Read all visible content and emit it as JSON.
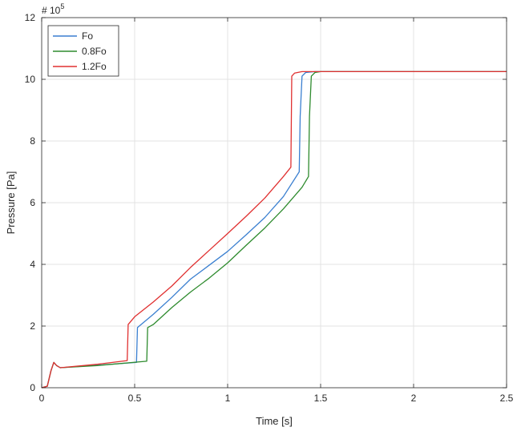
{
  "chart_data": {
    "type": "line",
    "xlabel": "Time [s]",
    "ylabel": "Pressure [Pa]",
    "exponent_label": "# 10",
    "exponent_power": "5",
    "xlim": [
      0,
      2.5
    ],
    "ylim": [
      0,
      12
    ],
    "xticks": [
      "0",
      "0.5",
      "1",
      "1.5",
      "2",
      "2.5"
    ],
    "yticks": [
      "0",
      "2",
      "4",
      "6",
      "8",
      "10",
      "12"
    ],
    "grid": true,
    "legend_position": "top-left",
    "series": [
      {
        "name": "Fo",
        "color": "#3a7fd0",
        "x": [
          0,
          0.03,
          0.05,
          0.065,
          0.08,
          0.1,
          0.3,
          0.51,
          0.515,
          0.6,
          0.7,
          0.8,
          0.9,
          1.0,
          1.1,
          1.2,
          1.3,
          1.385,
          1.39,
          1.4,
          1.42,
          1.47,
          2.5
        ],
        "y": [
          0,
          0.05,
          0.55,
          0.82,
          0.72,
          0.65,
          0.73,
          0.82,
          1.95,
          2.38,
          2.93,
          3.52,
          3.97,
          4.42,
          4.96,
          5.52,
          6.2,
          7.0,
          8.8,
          10.1,
          10.22,
          10.25,
          10.25
        ]
      },
      {
        "name": "0.8Fo",
        "color": "#2e8b2e",
        "x": [
          0,
          0.03,
          0.05,
          0.065,
          0.08,
          0.1,
          0.3,
          0.565,
          0.57,
          0.6,
          0.7,
          0.8,
          0.9,
          1.0,
          1.1,
          1.2,
          1.3,
          1.4,
          1.435,
          1.44,
          1.45,
          1.47,
          1.5,
          2.5
        ],
        "y": [
          0,
          0.05,
          0.55,
          0.82,
          0.72,
          0.65,
          0.72,
          0.86,
          1.95,
          2.05,
          2.6,
          3.1,
          3.55,
          4.05,
          4.62,
          5.18,
          5.8,
          6.5,
          6.85,
          8.8,
          10.1,
          10.22,
          10.25,
          10.25
        ]
      },
      {
        "name": "1.2Fo",
        "color": "#e03030",
        "x": [
          0,
          0.03,
          0.05,
          0.065,
          0.08,
          0.1,
          0.3,
          0.46,
          0.465,
          0.5,
          0.6,
          0.7,
          0.8,
          0.9,
          1.0,
          1.1,
          1.2,
          1.3,
          1.34,
          1.345,
          1.36,
          1.4,
          2.5
        ],
        "y": [
          0,
          0.05,
          0.55,
          0.82,
          0.72,
          0.65,
          0.76,
          0.88,
          2.05,
          2.3,
          2.78,
          3.3,
          3.9,
          4.45,
          5.0,
          5.56,
          6.15,
          6.85,
          7.15,
          10.1,
          10.2,
          10.25,
          10.25
        ]
      }
    ]
  }
}
